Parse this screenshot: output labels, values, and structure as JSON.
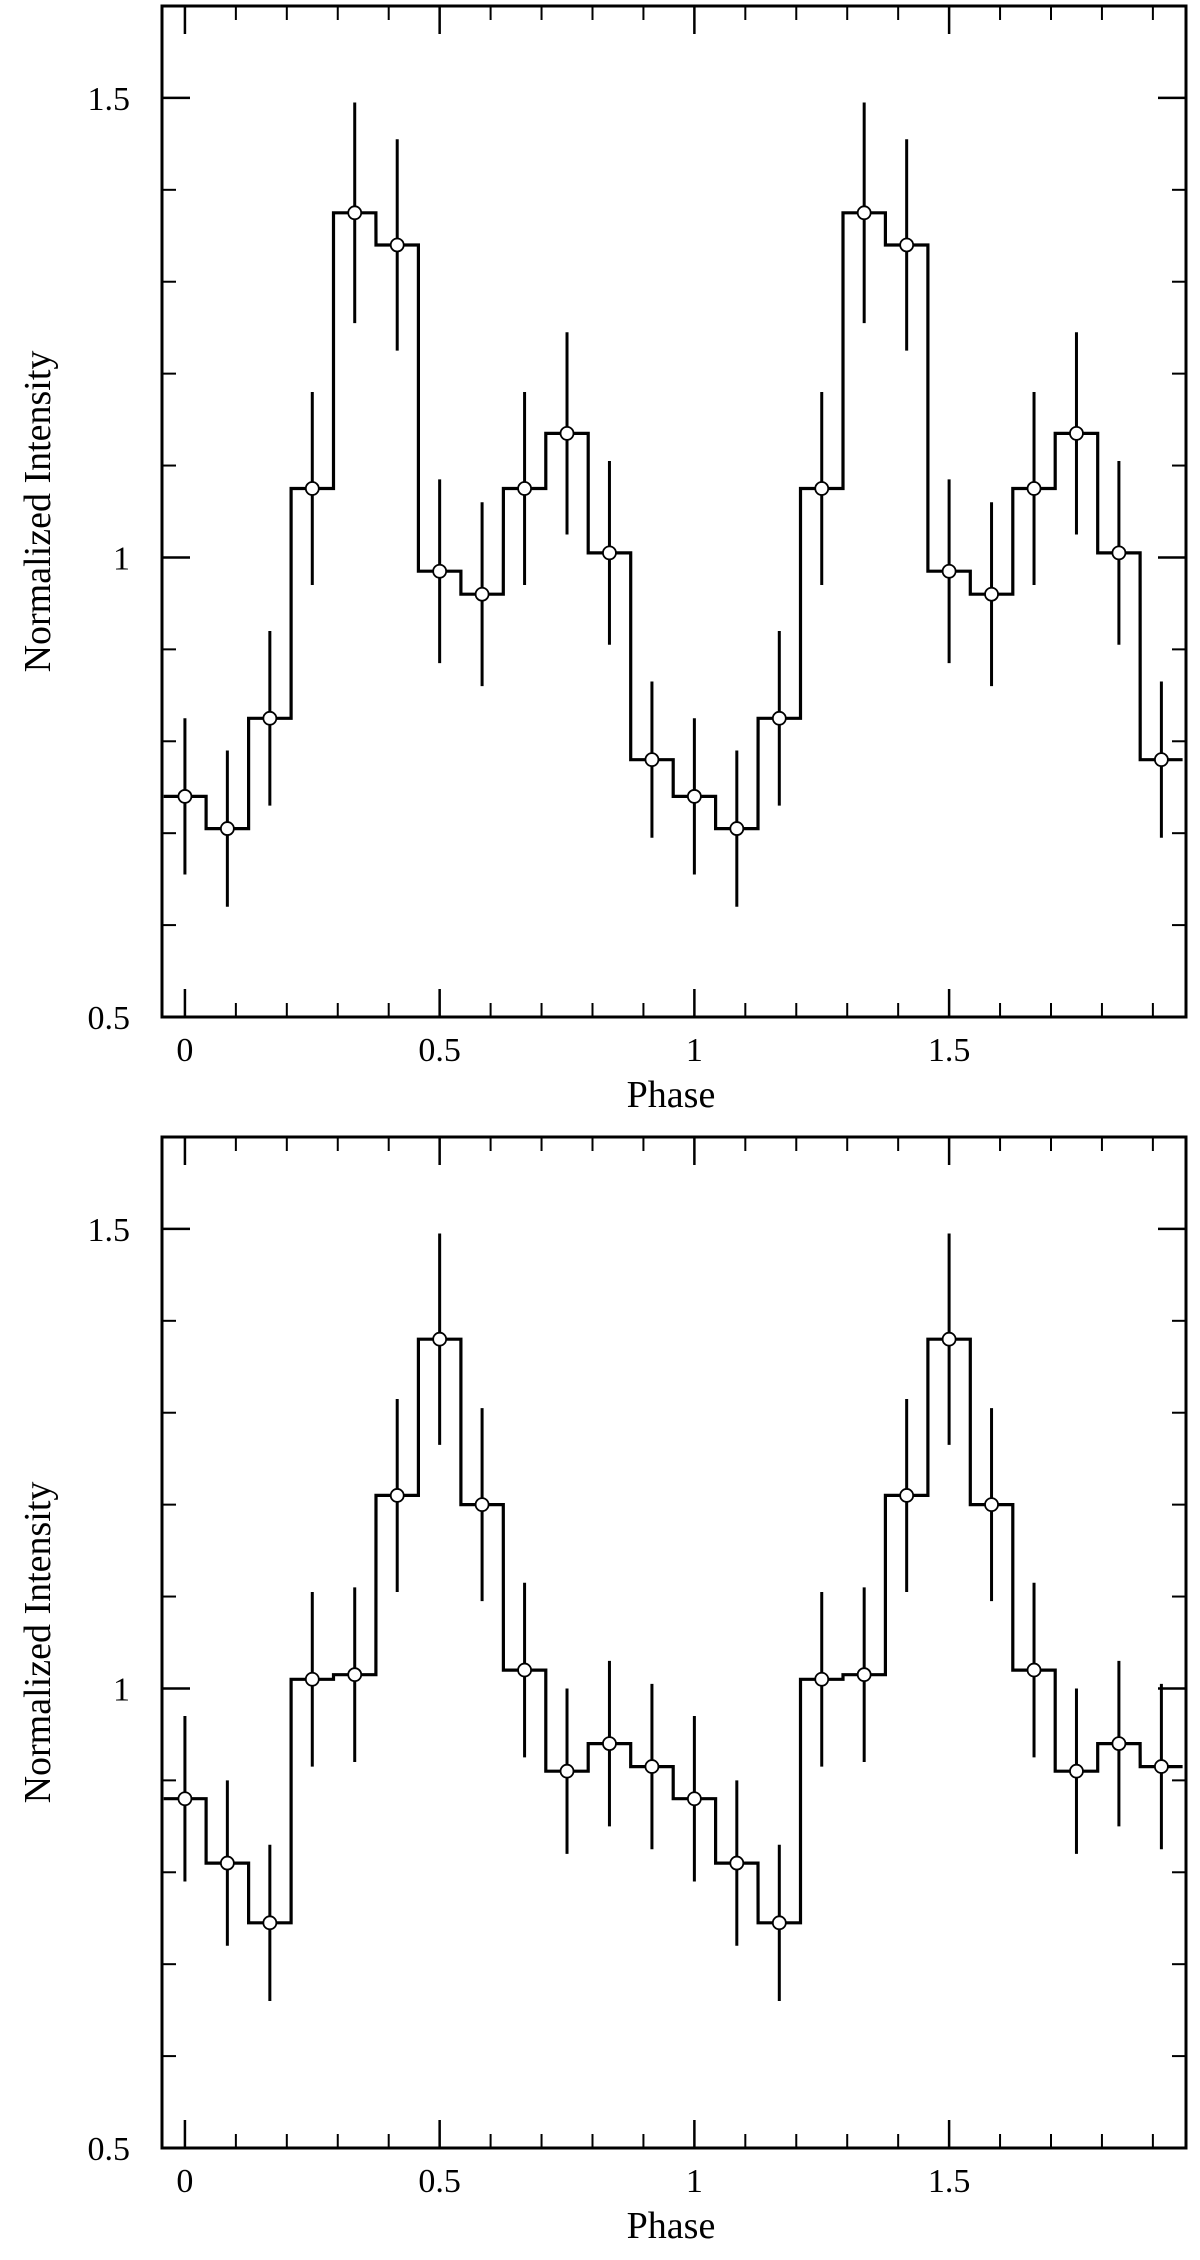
{
  "chart_data": [
    {
      "type": "step",
      "title": "",
      "xlabel": "Phase",
      "ylabel": "Normalized Intensity",
      "xlim": [
        -0.045,
        1.965
      ],
      "ylim": [
        0.5,
        1.6
      ],
      "xticks_major": [
        0,
        0.5,
        1,
        1.5
      ],
      "xtick_labels": [
        "0",
        "0.5",
        "1",
        "1.5"
      ],
      "xticks_minor": [
        0.1,
        0.2,
        0.3,
        0.4,
        0.6,
        0.7,
        0.8,
        0.9,
        1.1,
        1.2,
        1.3,
        1.4,
        1.6,
        1.7,
        1.8,
        1.9
      ],
      "yticks_major": [
        0.5,
        1,
        1.5
      ],
      "ytick_labels": [
        "0.5",
        "1",
        "1.5"
      ],
      "yticks_minor": [
        0.6,
        0.7,
        0.8,
        0.9,
        1.1,
        1.2,
        1.3,
        1.4
      ],
      "bin_width": 0.0833,
      "phase": [
        0,
        0.0833,
        0.1667,
        0.25,
        0.3333,
        0.4167,
        0.5,
        0.5833,
        0.6667,
        0.75,
        0.8333,
        0.9167,
        1,
        1.0833,
        1.1667,
        1.25,
        1.3333,
        1.4167,
        1.5,
        1.5833,
        1.6667,
        1.75,
        1.8333,
        1.9167
      ],
      "intensity": [
        0.74,
        0.705,
        0.825,
        1.075,
        1.375,
        1.34,
        0.985,
        0.96,
        1.075,
        1.135,
        1.005,
        0.78,
        0.74,
        0.705,
        0.825,
        1.075,
        1.375,
        1.34,
        0.985,
        0.96,
        1.075,
        1.135,
        1.005,
        0.78
      ],
      "error": [
        0.085,
        0.085,
        0.095,
        0.105,
        0.12,
        0.115,
        0.1,
        0.1,
        0.105,
        0.11,
        0.1,
        0.085,
        0.085,
        0.085,
        0.095,
        0.105,
        0.12,
        0.115,
        0.1,
        0.1,
        0.105,
        0.11,
        0.1,
        0.085
      ]
    },
    {
      "type": "step",
      "title": "",
      "xlabel": "Phase",
      "ylabel": "Normalized Intensity",
      "xlim": [
        -0.045,
        1.965
      ],
      "ylim": [
        0.5,
        1.6
      ],
      "xticks_major": [
        0,
        0.5,
        1,
        1.5
      ],
      "xtick_labels": [
        "0",
        "0.5",
        "1",
        "1.5"
      ],
      "xticks_minor": [
        0.1,
        0.2,
        0.3,
        0.4,
        0.6,
        0.7,
        0.8,
        0.9,
        1.1,
        1.2,
        1.3,
        1.4,
        1.6,
        1.7,
        1.8,
        1.9
      ],
      "yticks_major": [
        0.5,
        1,
        1.5
      ],
      "ytick_labels": [
        "0.5",
        "1",
        "1.5"
      ],
      "yticks_minor": [
        0.6,
        0.7,
        0.8,
        0.9,
        1.1,
        1.2,
        1.3,
        1.4
      ],
      "bin_width": 0.0833,
      "phase": [
        0,
        0.0833,
        0.1667,
        0.25,
        0.3333,
        0.4167,
        0.5,
        0.5833,
        0.6667,
        0.75,
        0.8333,
        0.9167,
        1,
        1.0833,
        1.1667,
        1.25,
        1.3333,
        1.4167,
        1.5,
        1.5833,
        1.6667,
        1.75,
        1.8333,
        1.9167
      ],
      "intensity": [
        0.88,
        0.81,
        0.745,
        1.01,
        1.015,
        1.21,
        1.38,
        1.2,
        1.02,
        0.91,
        0.94,
        0.915,
        0.88,
        0.81,
        0.745,
        1.01,
        1.015,
        1.21,
        1.38,
        1.2,
        1.02,
        0.91,
        0.94,
        0.915
      ],
      "error": [
        0.09,
        0.09,
        0.085,
        0.095,
        0.095,
        0.105,
        0.115,
        0.105,
        0.095,
        0.09,
        0.09,
        0.09,
        0.09,
        0.09,
        0.085,
        0.095,
        0.095,
        0.105,
        0.115,
        0.105,
        0.095,
        0.09,
        0.09,
        0.09
      ]
    }
  ]
}
